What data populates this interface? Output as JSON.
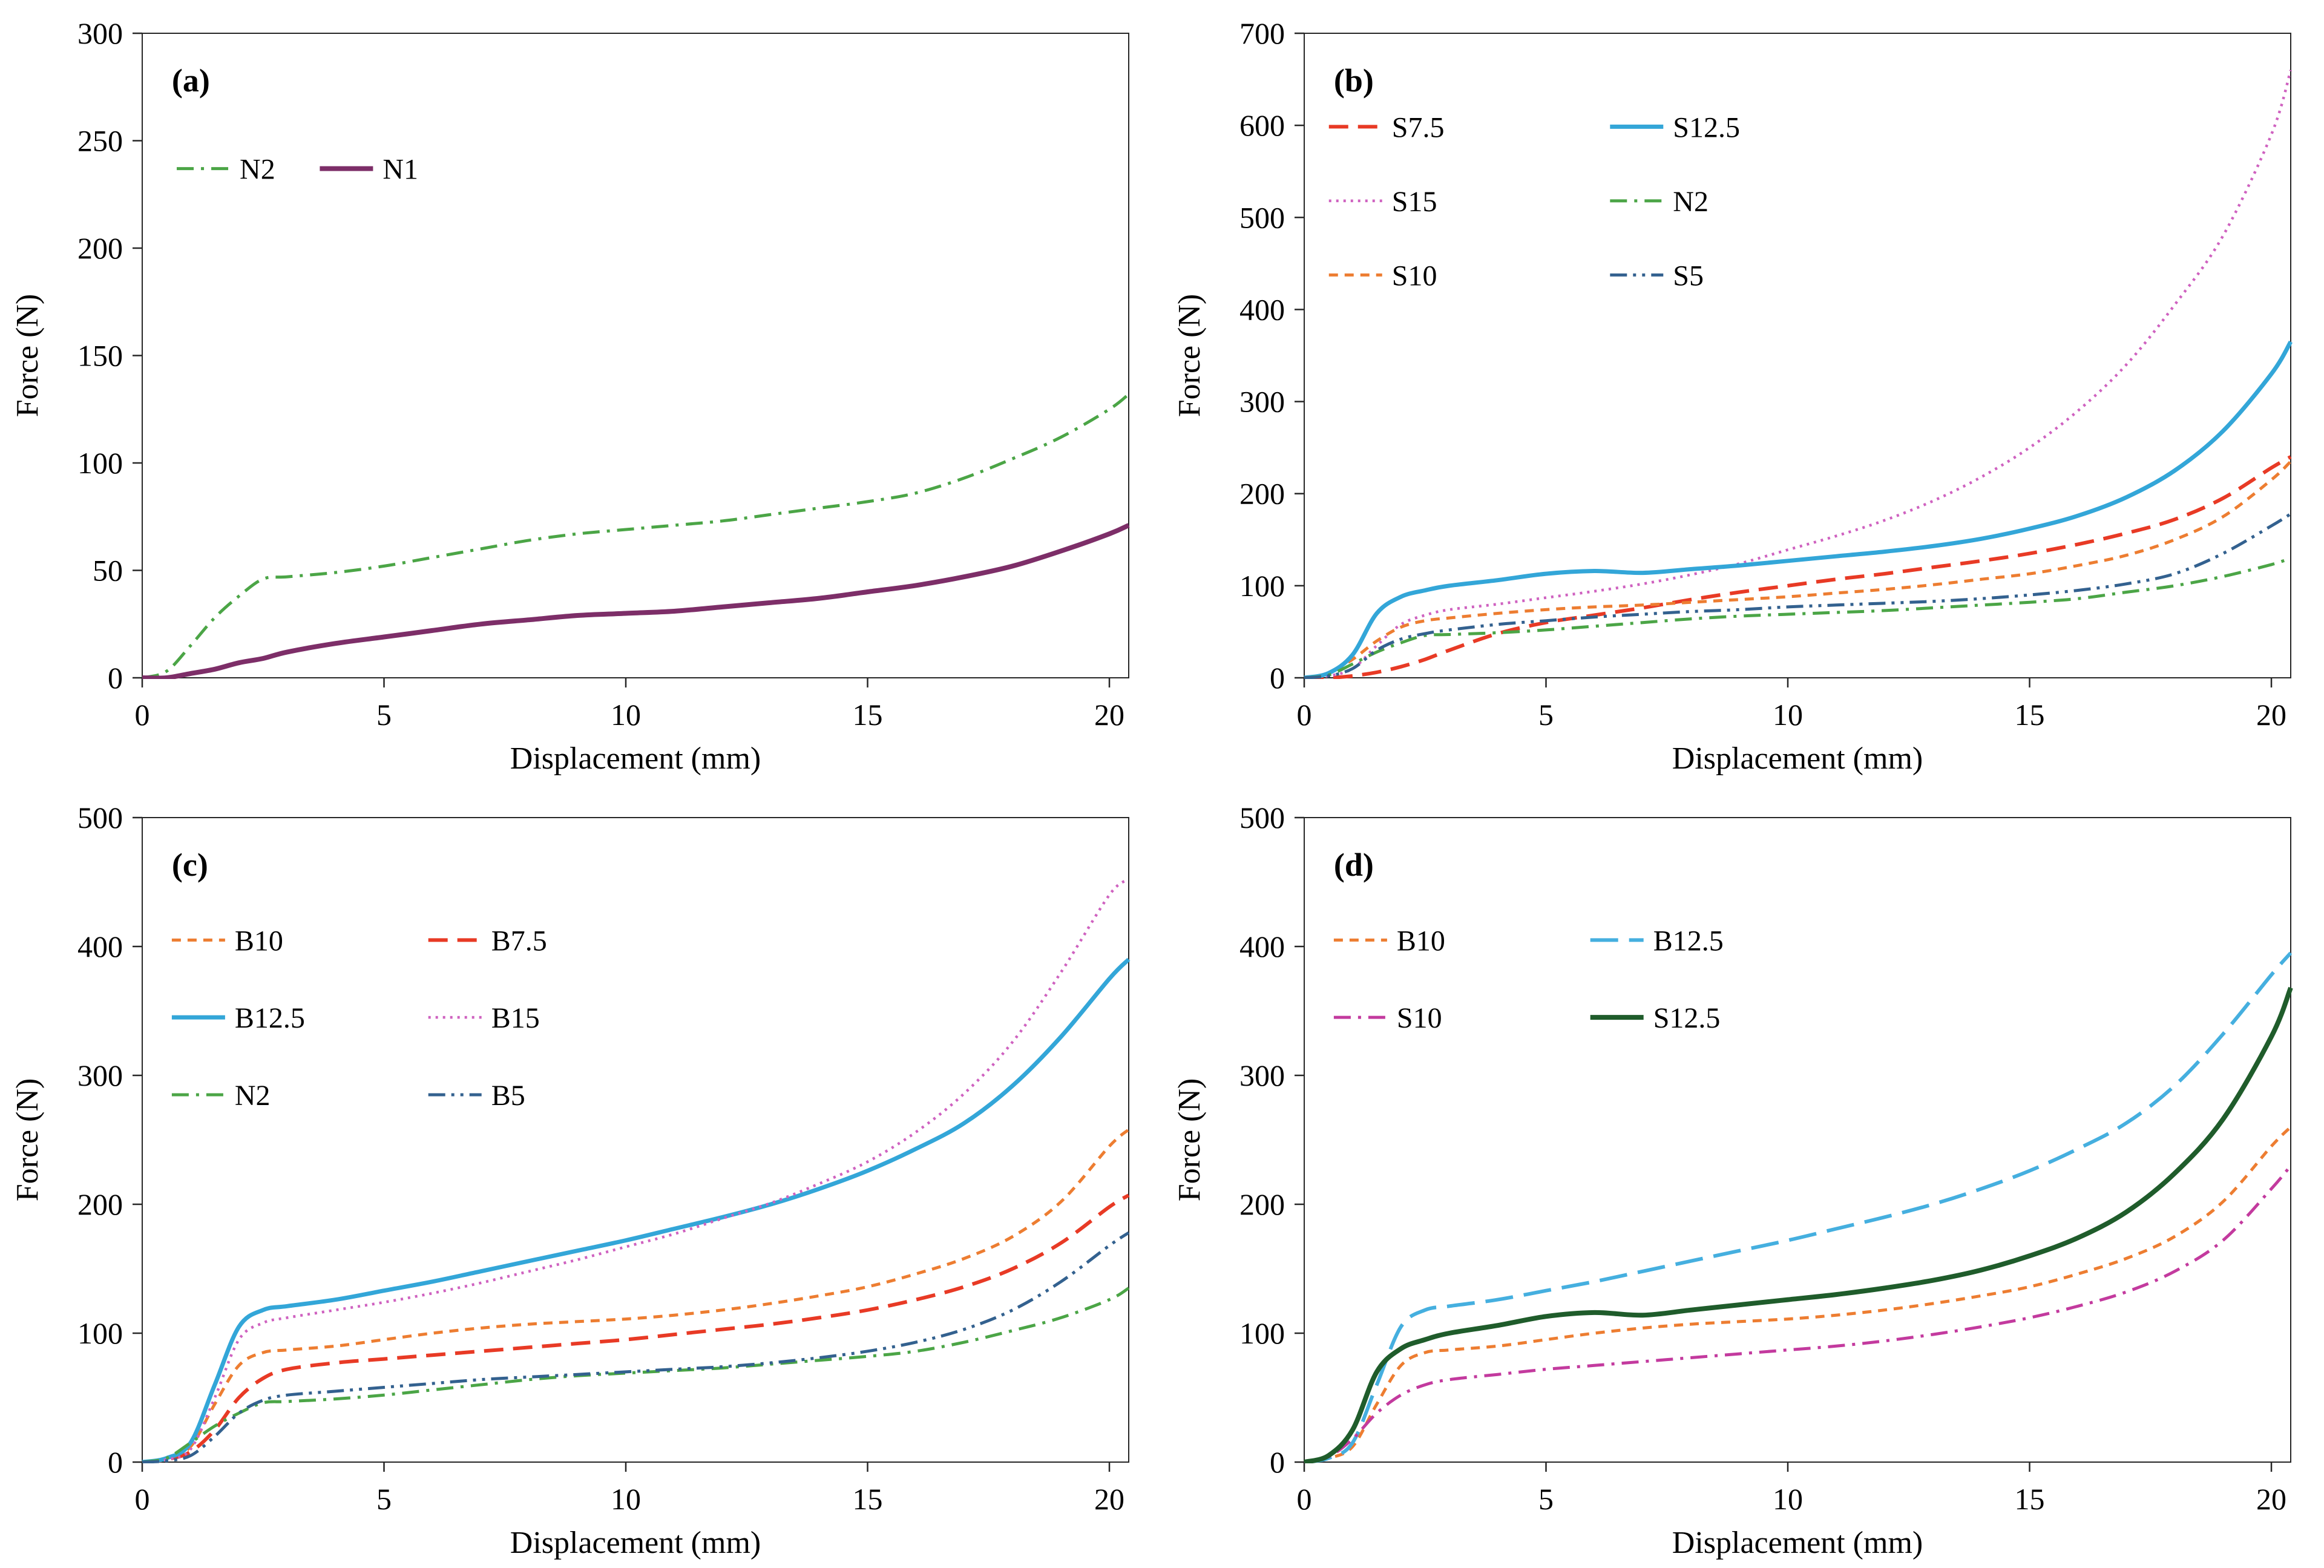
{
  "figure": {
    "background": "#ffffff",
    "panels": [
      "(a)",
      "(b)",
      "(c)",
      "(d)"
    ]
  },
  "chart_data": [
    {
      "type": "line",
      "panel_label": "(a)",
      "xlabel": "Displacement (mm)",
      "ylabel": "Force (N)",
      "xlim": [
        0,
        20.4
      ],
      "ylim": [
        0,
        300
      ],
      "xticks": [
        0,
        5,
        10,
        15,
        20
      ],
      "yticks": [
        0,
        50,
        100,
        150,
        200,
        250,
        300
      ],
      "x": [
        0,
        0.5,
        1,
        1.5,
        2,
        2.5,
        3,
        4,
        5,
        6,
        7,
        8,
        9,
        10,
        11,
        12,
        13,
        14,
        15,
        16,
        17,
        18,
        19,
        20,
        20.4
      ],
      "series": [
        {
          "name": "N2",
          "color": "#4BA546",
          "dash": "dashdot",
          "width": 5,
          "y": [
            0,
            3,
            15,
            28,
            38,
            46,
            47,
            49,
            52,
            56,
            60,
            64,
            67,
            69,
            71,
            73,
            76,
            79,
            82,
            86,
            93,
            102,
            112,
            125,
            132
          ]
        },
        {
          "name": "N1",
          "color": "#7D2E68",
          "dash": "solid",
          "width": 8,
          "y": [
            0,
            0,
            2,
            4,
            7,
            9,
            12,
            16,
            19,
            22,
            25,
            27,
            29,
            30,
            31,
            33,
            35,
            37,
            40,
            43,
            47,
            52,
            59,
            67,
            71
          ]
        }
      ],
      "legend": {
        "rows": [
          [
            "N2",
            "N1"
          ]
        ],
        "x": 0.035,
        "y": 0.21,
        "col_gap": 0.145,
        "row_gap": 0.115
      }
    },
    {
      "type": "line",
      "panel_label": "(b)",
      "xlabel": "Displacement (mm)",
      "ylabel": "Force (N)",
      "xlim": [
        0,
        20.4
      ],
      "ylim": [
        0,
        700
      ],
      "xticks": [
        0,
        5,
        10,
        15,
        20
      ],
      "yticks": [
        0,
        100,
        200,
        300,
        400,
        500,
        600,
        700
      ],
      "x": [
        0,
        0.5,
        1,
        1.5,
        2,
        2.5,
        3,
        4,
        5,
        6,
        7,
        8,
        9,
        10,
        11,
        12,
        13,
        14,
        15,
        16,
        17,
        18,
        19,
        20,
        20.4
      ],
      "series": [
        {
          "name": "S7.5",
          "color": "#E83A25",
          "dash": "dash",
          "width": 6,
          "y": [
            0,
            0,
            2,
            6,
            12,
            20,
            30,
            48,
            60,
            68,
            76,
            85,
            93,
            100,
            107,
            113,
            120,
            127,
            135,
            145,
            157,
            172,
            195,
            228,
            240
          ]
        },
        {
          "name": "S15",
          "color": "#CF62C0",
          "dash": "dot",
          "width": 4.5,
          "y": [
            0,
            2,
            10,
            35,
            58,
            68,
            74,
            80,
            87,
            94,
            102,
            112,
            124,
            139,
            154,
            171,
            192,
            218,
            250,
            290,
            340,
            405,
            480,
            590,
            660
          ]
        },
        {
          "name": "S10",
          "color": "#ED7D31",
          "dash": "shortdash",
          "width": 5,
          "y": [
            0,
            5,
            20,
            40,
            55,
            62,
            65,
            70,
            74,
            77,
            79,
            82,
            85,
            88,
            92,
            96,
            101,
            107,
            113,
            122,
            133,
            150,
            175,
            215,
            235
          ]
        },
        {
          "name": "S12.5",
          "color": "#33A6D8",
          "dash": "solid",
          "width": 7,
          "y": [
            0,
            5,
            25,
            70,
            88,
            95,
            100,
            106,
            113,
            116,
            114,
            118,
            122,
            127,
            132,
            137,
            143,
            151,
            162,
            176,
            196,
            225,
            268,
            330,
            365
          ]
        },
        {
          "name": "N2",
          "color": "#4BA546",
          "dash": "dashdot",
          "width": 5,
          "y": [
            0,
            3,
            15,
            28,
            38,
            46,
            47,
            49,
            52,
            56,
            60,
            64,
            67,
            69,
            71,
            73,
            76,
            79,
            82,
            86,
            93,
            100,
            110,
            123,
            130
          ]
        },
        {
          "name": "S5",
          "color": "#33618F",
          "dash": "dashdotdot",
          "width": 5,
          "y": [
            0,
            2,
            10,
            30,
            42,
            48,
            52,
            58,
            62,
            66,
            69,
            72,
            74,
            77,
            79,
            81,
            83,
            86,
            90,
            95,
            102,
            113,
            135,
            165,
            178
          ]
        }
      ],
      "legend": {
        "rows": [
          [
            "S7.5",
            "S12.5"
          ],
          [
            "S15",
            "N2"
          ],
          [
            "S10",
            "S5"
          ]
        ],
        "x": 0.025,
        "y": 0.145,
        "col_gap": 0.285,
        "row_gap": 0.115
      }
    },
    {
      "type": "line",
      "panel_label": "(c)",
      "xlabel": "Displacement (mm)",
      "ylabel": "Force (N)",
      "xlim": [
        0,
        20.4
      ],
      "ylim": [
        0,
        500
      ],
      "xticks": [
        0,
        5,
        10,
        15,
        20
      ],
      "yticks": [
        0,
        100,
        200,
        300,
        400,
        500
      ],
      "x": [
        0,
        0.5,
        1,
        1.5,
        2,
        2.5,
        3,
        4,
        5,
        6,
        7,
        8,
        9,
        10,
        11,
        12,
        13,
        14,
        15,
        16,
        17,
        18,
        19,
        20,
        20.4
      ],
      "series": [
        {
          "name": "B10",
          "color": "#ED7D31",
          "dash": "shortdash",
          "width": 5,
          "y": [
            0,
            3,
            12,
            45,
            75,
            85,
            87,
            90,
            95,
            100,
            104,
            107,
            109,
            111,
            114,
            118,
            123,
            129,
            136,
            146,
            158,
            175,
            202,
            245,
            258
          ]
        },
        {
          "name": "B7.5",
          "color": "#E83A25",
          "dash": "dash",
          "width": 6,
          "y": [
            0,
            2,
            8,
            25,
            50,
            65,
            72,
            77,
            80,
            83,
            86,
            89,
            92,
            95,
            99,
            103,
            107,
            112,
            118,
            126,
            136,
            150,
            170,
            198,
            207
          ]
        },
        {
          "name": "B12.5",
          "color": "#33A6D8",
          "dash": "solid",
          "width": 7,
          "y": [
            0,
            3,
            15,
            60,
            105,
            118,
            121,
            126,
            133,
            140,
            148,
            156,
            164,
            172,
            181,
            190,
            200,
            212,
            226,
            243,
            263,
            292,
            330,
            375,
            390
          ]
        },
        {
          "name": "B15",
          "color": "#CF62C0",
          "dash": "dot",
          "width": 4.5,
          "y": [
            0,
            2,
            10,
            50,
            95,
            108,
            112,
            118,
            124,
            131,
            139,
            148,
            157,
            167,
            177,
            189,
            201,
            216,
            233,
            256,
            286,
            326,
            380,
            440,
            452
          ]
        },
        {
          "name": "N2",
          "color": "#4BA546",
          "dash": "dashdot",
          "width": 5,
          "y": [
            0,
            3,
            15,
            28,
            38,
            46,
            47,
            49,
            52,
            56,
            60,
            64,
            67,
            69,
            71,
            73,
            76,
            79,
            82,
            86,
            93,
            102,
            112,
            126,
            135
          ]
        },
        {
          "name": "B5",
          "color": "#33618F",
          "dash": "dashdotdot",
          "width": 5,
          "y": [
            0,
            1,
            5,
            20,
            38,
            48,
            52,
            55,
            58,
            61,
            64,
            66,
            68,
            70,
            72,
            74,
            77,
            81,
            86,
            93,
            103,
            118,
            140,
            168,
            178
          ]
        }
      ],
      "legend": {
        "rows": [
          [
            "B10",
            "B7.5"
          ],
          [
            "B12.5",
            "B15"
          ],
          [
            "N2",
            "B5"
          ]
        ],
        "x": 0.03,
        "y": 0.19,
        "col_gap": 0.26,
        "row_gap": 0.12
      }
    },
    {
      "type": "line",
      "panel_label": "(d)",
      "xlabel": "Displacement (mm)",
      "ylabel": "Force (N)",
      "xlim": [
        0,
        20.4
      ],
      "ylim": [
        0,
        500
      ],
      "xticks": [
        0,
        5,
        10,
        15,
        20
      ],
      "yticks": [
        0,
        100,
        200,
        300,
        400,
        500
      ],
      "x": [
        0,
        0.5,
        1,
        1.5,
        2,
        2.5,
        3,
        4,
        5,
        6,
        7,
        8,
        9,
        10,
        11,
        12,
        13,
        14,
        15,
        16,
        17,
        18,
        19,
        20,
        20.4
      ],
      "series": [
        {
          "name": "B10",
          "color": "#ED7D31",
          "dash": "shortdash",
          "width": 5,
          "y": [
            0,
            3,
            12,
            45,
            75,
            85,
            87,
            90,
            95,
            100,
            104,
            107,
            109,
            111,
            114,
            118,
            123,
            129,
            136,
            146,
            158,
            175,
            202,
            245,
            260
          ]
        },
        {
          "name": "B12.5",
          "color": "#45AFDF",
          "dash": "longdash",
          "width": 6,
          "y": [
            0,
            3,
            15,
            60,
            105,
            118,
            121,
            126,
            133,
            140,
            148,
            156,
            164,
            172,
            181,
            190,
            200,
            212,
            226,
            243,
            263,
            292,
            332,
            378,
            395
          ]
        },
        {
          "name": "S10",
          "color": "#C33A9E",
          "dash": "dashdot",
          "width": 5,
          "y": [
            0,
            4,
            18,
            38,
            52,
            60,
            64,
            68,
            72,
            75,
            78,
            81,
            84,
            87,
            90,
            94,
            99,
            105,
            112,
            121,
            132,
            148,
            172,
            212,
            230
          ]
        },
        {
          "name": "S12.5",
          "color": "#1F5C2B",
          "dash": "solid",
          "width": 8,
          "y": [
            0,
            5,
            25,
            70,
            88,
            95,
            100,
            106,
            113,
            116,
            114,
            118,
            122,
            126,
            130,
            135,
            141,
            149,
            160,
            174,
            194,
            224,
            266,
            330,
            368
          ]
        }
      ],
      "legend": {
        "rows": [
          [
            "B10",
            "B12.5"
          ],
          [
            "S10",
            "S12.5"
          ]
        ],
        "x": 0.03,
        "y": 0.19,
        "col_gap": 0.26,
        "row_gap": 0.12
      }
    }
  ]
}
